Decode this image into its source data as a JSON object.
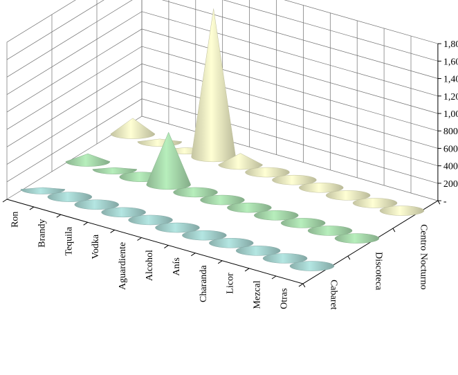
{
  "chart_data": {
    "type": "3d-cone",
    "title": "",
    "categories": [
      "Ron",
      "Brandy",
      "Tequila",
      "Vodka",
      "Aguardiente",
      "Alcohol",
      "Anís",
      "Charanda",
      "Licor",
      "Mezcal",
      "Otras"
    ],
    "series": [
      {
        "name": "Cabaret",
        "color": "#a7d5d1",
        "values": [
          20,
          10,
          0,
          0,
          0,
          0,
          0,
          0,
          0,
          0,
          0
        ]
      },
      {
        "name": "Discoteca",
        "color": "#a9dcae",
        "values": [
          90,
          20,
          10,
          600,
          10,
          5,
          5,
          0,
          0,
          0,
          0
        ]
      },
      {
        "name": "Centro Nocturno",
        "color": "#efefc4",
        "values": [
          180,
          30,
          20,
          1700,
          130,
          10,
          10,
          5,
          0,
          0,
          0
        ]
      }
    ],
    "z_axis": {
      "min": 0,
      "max": 1800,
      "step": 200,
      "tick_labels": [
        "-",
        "200",
        "400",
        "600",
        "800",
        "1,000",
        "1,200",
        "1,400",
        "1,600",
        "1,800"
      ]
    },
    "grid": true,
    "legend": "none"
  }
}
